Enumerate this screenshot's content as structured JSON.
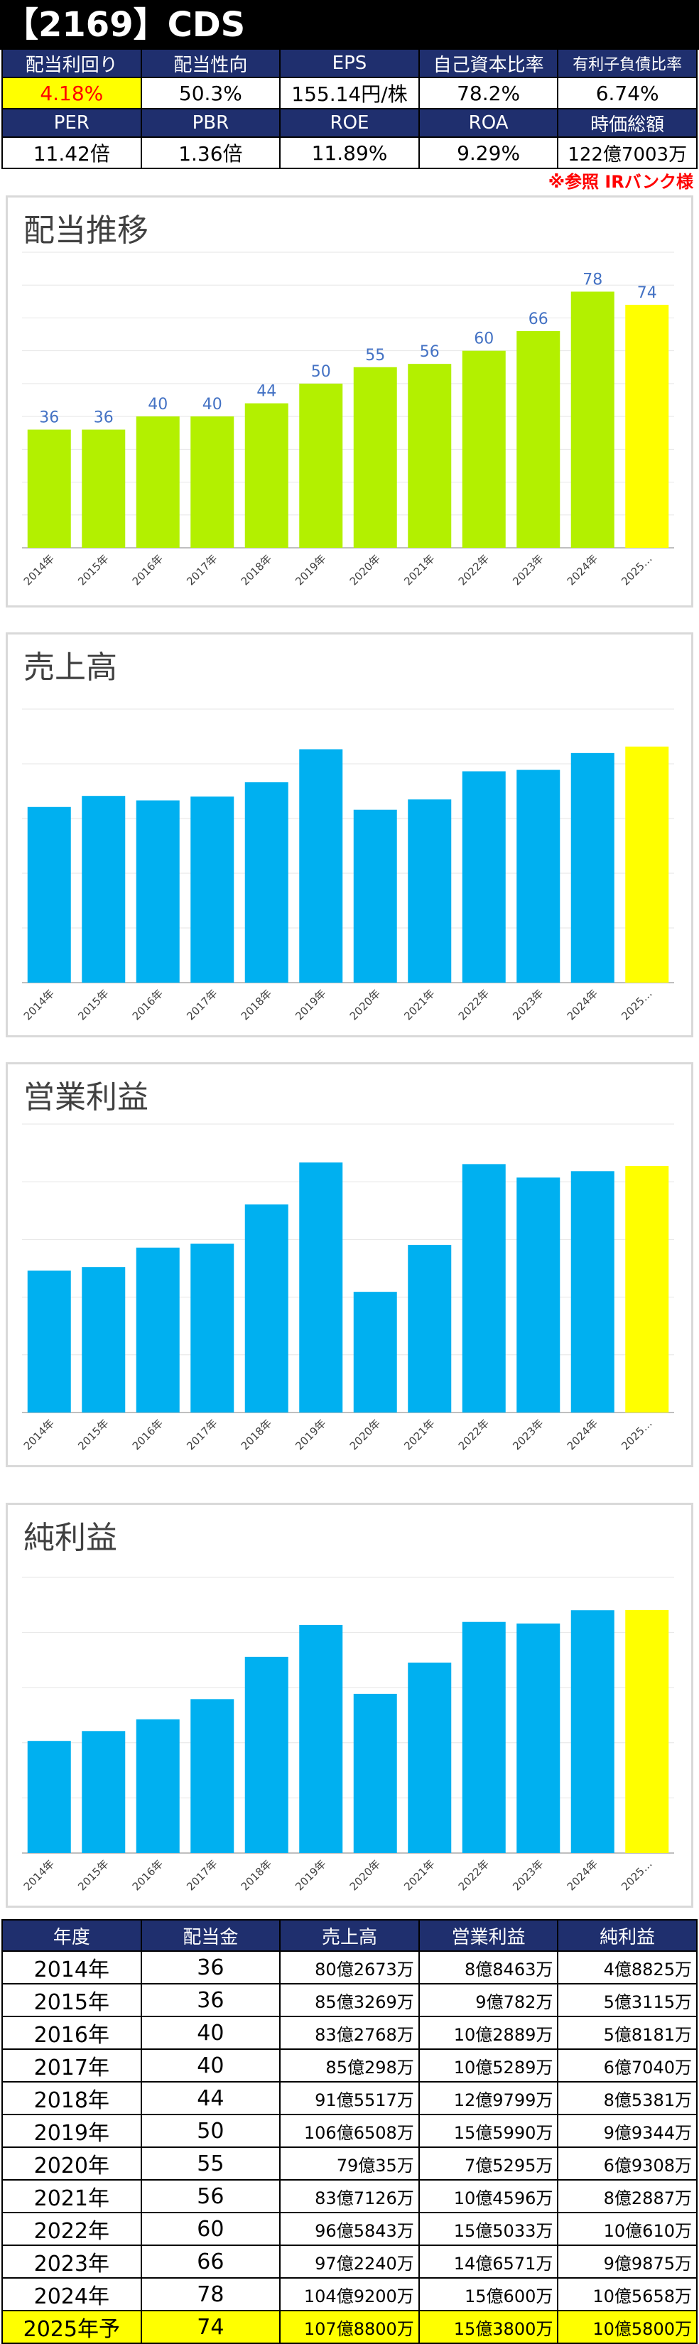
{
  "title": "【2169】CDS",
  "metrics_top": {
    "labels": [
      "配当利回り",
      "配当性向",
      "EPS",
      "自己資本比率",
      "有利子負債比率"
    ],
    "values": [
      "4.18%",
      "50.3%",
      "155.14円/株",
      "78.2%",
      "6.74%"
    ]
  },
  "metrics_bottom": {
    "labels": [
      "PER",
      "PBR",
      "ROE",
      "ROA",
      "時価総額"
    ],
    "values": [
      "11.42倍",
      "1.36倍",
      "11.89%",
      "9.29%",
      "122億7003万"
    ]
  },
  "source_note": "※参照 IRバンク様",
  "colors": {
    "lime": "#b3f000",
    "blue": "#00b0f0",
    "forecast": "#ffff00",
    "header": "#1f2f6e",
    "label": "#4472c4"
  },
  "chart_data": [
    {
      "type": "bar",
      "title": "配当推移",
      "categories": [
        "2014年",
        "2015年",
        "2016年",
        "2017年",
        "2018年",
        "2019年",
        "2020年",
        "2021年",
        "2022年",
        "2023年",
        "2024年",
        "2025…"
      ],
      "values": [
        36,
        36,
        40,
        40,
        44,
        50,
        55,
        56,
        60,
        66,
        78,
        74
      ],
      "data_labels": [
        "36",
        "36",
        "40",
        "40",
        "44",
        "50",
        "55",
        "56",
        "60",
        "66",
        "78",
        "74"
      ],
      "ylim": [
        0,
        90
      ],
      "grid": true
    },
    {
      "type": "bar",
      "title": "売上高",
      "categories": [
        "2014年",
        "2015年",
        "2016年",
        "2017年",
        "2018年",
        "2019年",
        "2020年",
        "2021年",
        "2022年",
        "2023年",
        "2024年",
        "2025…"
      ],
      "values": [
        80.27,
        85.33,
        83.28,
        85.03,
        91.55,
        106.65,
        79.0,
        83.71,
        96.58,
        97.22,
        104.92,
        107.88
      ],
      "ylim": [
        0,
        125
      ],
      "grid": true
    },
    {
      "type": "bar",
      "title": "営業利益",
      "categories": [
        "2014年",
        "2015年",
        "2016年",
        "2017年",
        "2018年",
        "2019年",
        "2020年",
        "2021年",
        "2022年",
        "2023年",
        "2024年",
        "2025…"
      ],
      "values": [
        8.85,
        9.08,
        10.29,
        10.53,
        12.98,
        15.6,
        7.53,
        10.46,
        15.5,
        14.66,
        15.06,
        15.38
      ],
      "ylim": [
        0,
        18
      ],
      "grid": true
    },
    {
      "type": "bar",
      "title": "純利益",
      "categories": [
        "2014年",
        "2015年",
        "2016年",
        "2017年",
        "2018年",
        "2019年",
        "2020年",
        "2021年",
        "2022年",
        "2023年",
        "2024年",
        "2025…"
      ],
      "values": [
        4.88,
        5.31,
        5.82,
        6.7,
        8.54,
        9.93,
        6.93,
        8.29,
        10.06,
        9.99,
        10.57,
        10.58
      ],
      "ylim": [
        0,
        12
      ],
      "grid": true
    }
  ],
  "data_table": {
    "headers": [
      "年度",
      "配当金",
      "売上高",
      "営業利益",
      "純利益"
    ],
    "rows": [
      [
        "2014年",
        "36",
        "80億2673万",
        "8億8463万",
        "4億8825万"
      ],
      [
        "2015年",
        "36",
        "85億3269万",
        "9億782万",
        "5億3115万"
      ],
      [
        "2016年",
        "40",
        "83億2768万",
        "10億2889万",
        "5億8181万"
      ],
      [
        "2017年",
        "40",
        "85億298万",
        "10億5289万",
        "6億7040万"
      ],
      [
        "2018年",
        "44",
        "91億5517万",
        "12億9799万",
        "8億5381万"
      ],
      [
        "2019年",
        "50",
        "106億6508万",
        "15億5990万",
        "9億9344万"
      ],
      [
        "2020年",
        "55",
        "79億35万",
        "7億5295万",
        "6億9308万"
      ],
      [
        "2021年",
        "56",
        "83億7126万",
        "10億4596万",
        "8億2887万"
      ],
      [
        "2022年",
        "60",
        "96億5843万",
        "15億5033万",
        "10億610万"
      ],
      [
        "2023年",
        "66",
        "97億2240万",
        "14億6571万",
        "9億9875万"
      ],
      [
        "2024年",
        "78",
        "104億9200万",
        "15億600万",
        "10億5658万"
      ],
      [
        "2025年予",
        "74",
        "107億8800万",
        "15億3800万",
        "10億5800万"
      ]
    ]
  }
}
